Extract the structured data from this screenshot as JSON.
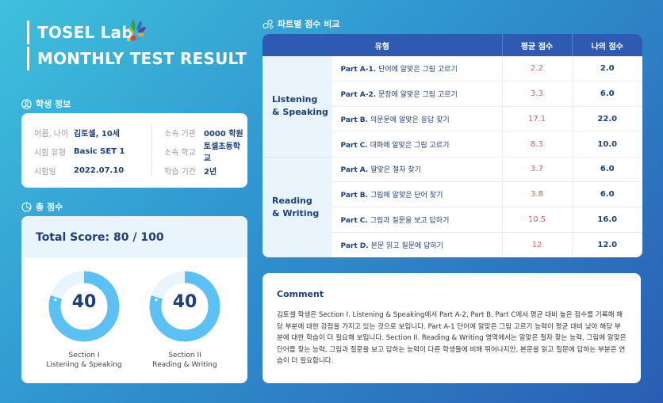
{
  "header": {
    "line1": "TOSEL Lab",
    "line2": "MONTHLY TEST RESULT"
  },
  "sections": {
    "student_info": "학생 정보",
    "total_score": "총 점수",
    "part_compare": "파트별 점수 비교"
  },
  "student": {
    "left": [
      {
        "k": "이름, 나이",
        "v": "김토셀, 10세"
      },
      {
        "k": "시험 유형",
        "v": "Basic SET 1"
      },
      {
        "k": "시험일",
        "v": "2022.07.10"
      }
    ],
    "right": [
      {
        "k": "소속 기관",
        "v": "0000 학원"
      },
      {
        "k": "소속 학교",
        "v": "토셀초등학교"
      },
      {
        "k": "학습 기간",
        "v": "2년"
      }
    ]
  },
  "total": {
    "label": "Total Score: 80 / 100",
    "gauges": [
      {
        "value": "40",
        "fraction": 0.8,
        "cap1": "Section I",
        "cap2": "Listening & Speaking"
      },
      {
        "value": "40",
        "fraction": 0.8,
        "cap1": "Section II",
        "cap2": "Reading & Writing"
      }
    ]
  },
  "table": {
    "headers": [
      "유형",
      "평균 점수",
      "나의 점수"
    ],
    "sections": [
      {
        "name1": "Listening",
        "name2": "& Speaking",
        "rows": [
          {
            "code": "Part A-1.",
            "desc": "단어에 알맞은 그림 고르기",
            "avg": "2.2",
            "mine": "2.0"
          },
          {
            "code": "Part A-2.",
            "desc": "문장에 알맞은 그림 고르기",
            "avg": "3.3",
            "mine": "6.0"
          },
          {
            "code": "Part B.",
            "desc": "의문문에 알맞은 응답 찾기",
            "avg": "17.1",
            "mine": "22.0"
          },
          {
            "code": "Part C.",
            "desc": "대화에 알맞은 그림 고르기",
            "avg": "8.3",
            "mine": "10.0"
          }
        ]
      },
      {
        "name1": "Reading",
        "name2": "& Writing",
        "rows": [
          {
            "code": "Part A.",
            "desc": "알맞은 철자 찾기",
            "avg": "3.7",
            "mine": "6.0"
          },
          {
            "code": "Part B.",
            "desc": "그림에 알맞은 단어 찾기",
            "avg": "3.8",
            "mine": "6.0"
          },
          {
            "code": "Part C.",
            "desc": "그림과 질문을 보고 답하기",
            "avg": "10.5",
            "mine": "16.0"
          },
          {
            "code": "Part D.",
            "desc": "본문 읽고 질문에 답하기",
            "avg": "12",
            "mine": "12.0"
          }
        ]
      }
    ]
  },
  "comment": {
    "title": "Comment",
    "text": "김토셀 학생은 Section I. Listening & Speaking에서 Part A-2, Part B, Part C에서 평균 대비 높은 점수를 기록해 해당 부분에 대한 강점을 가지고 있는 것으로 보입니다. Part A-1 단어에 알맞은 그림 고르기 능력이 평균 대비 낮아 해당 부분에 대한 학습이 더 필요해 보입니다. Section II. Reading & Writing 영역에서는 알맞은 철자 찾는 능력, 그림에 알맞은 단어를 찾는 능력, 그림과 질문을 보고 답하는 능력이 다른 학생들에 비해 뛰어나지만, 본문을 읽고 질문에 답하는 부분은 연습이 더 필요합니다."
  },
  "colors": {
    "navy": "#1d3f7a",
    "accent_blue": "#2e5ab3",
    "gauge_light": "#e9f4fc",
    "gauge_fill": "#5cc0f3",
    "avg_red": "#e25c5c"
  }
}
